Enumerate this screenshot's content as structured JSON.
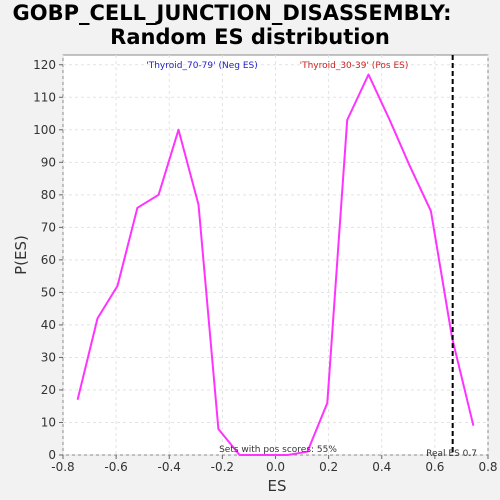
{
  "chart_data": {
    "type": "line",
    "title": "GOBP_CELL_JUNCTION_DISASSEMBLY:",
    "subtitle": "Random ES distribution",
    "xlabel": "ES",
    "ylabel": "P(ES)",
    "xlim": [
      -0.8,
      0.8
    ],
    "ylim": [
      0,
      123
    ],
    "xticks": [
      "-0.8",
      "-0.6",
      "-0.4",
      "-0.2",
      "0.0",
      "0.2",
      "0.4",
      "0.6",
      "0.8"
    ],
    "yticks": [
      "0",
      "10",
      "20",
      "30",
      "40",
      "50",
      "60",
      "70",
      "80",
      "90",
      "100",
      "110",
      "120"
    ],
    "grid": true,
    "series": [
      {
        "color": "#ff33ff",
        "x": [
          -0.745,
          -0.67,
          -0.595,
          -0.52,
          -0.44,
          -0.365,
          -0.29,
          -0.215,
          -0.135,
          -0.06,
          0.045,
          0.12,
          0.195,
          0.27,
          0.35,
          0.43,
          0.505,
          0.585,
          0.665,
          0.745
        ],
        "y": [
          17,
          42,
          52,
          76,
          80,
          100,
          77,
          8,
          0,
          0,
          0,
          1,
          16,
          103,
          117,
          103,
          89,
          75,
          36,
          9
        ]
      }
    ],
    "neg_label": "'Thyroid_70-79' (Neg ES)",
    "neg_color": "#2222cc",
    "pos_label": "'Thyroid_30-39' (Pos ES)",
    "pos_color": "#cc2222",
    "pos_scores_text": "Sets with pos scores: 55%",
    "real_es": 0.667,
    "real_es_text": "Real ES 0.7"
  }
}
